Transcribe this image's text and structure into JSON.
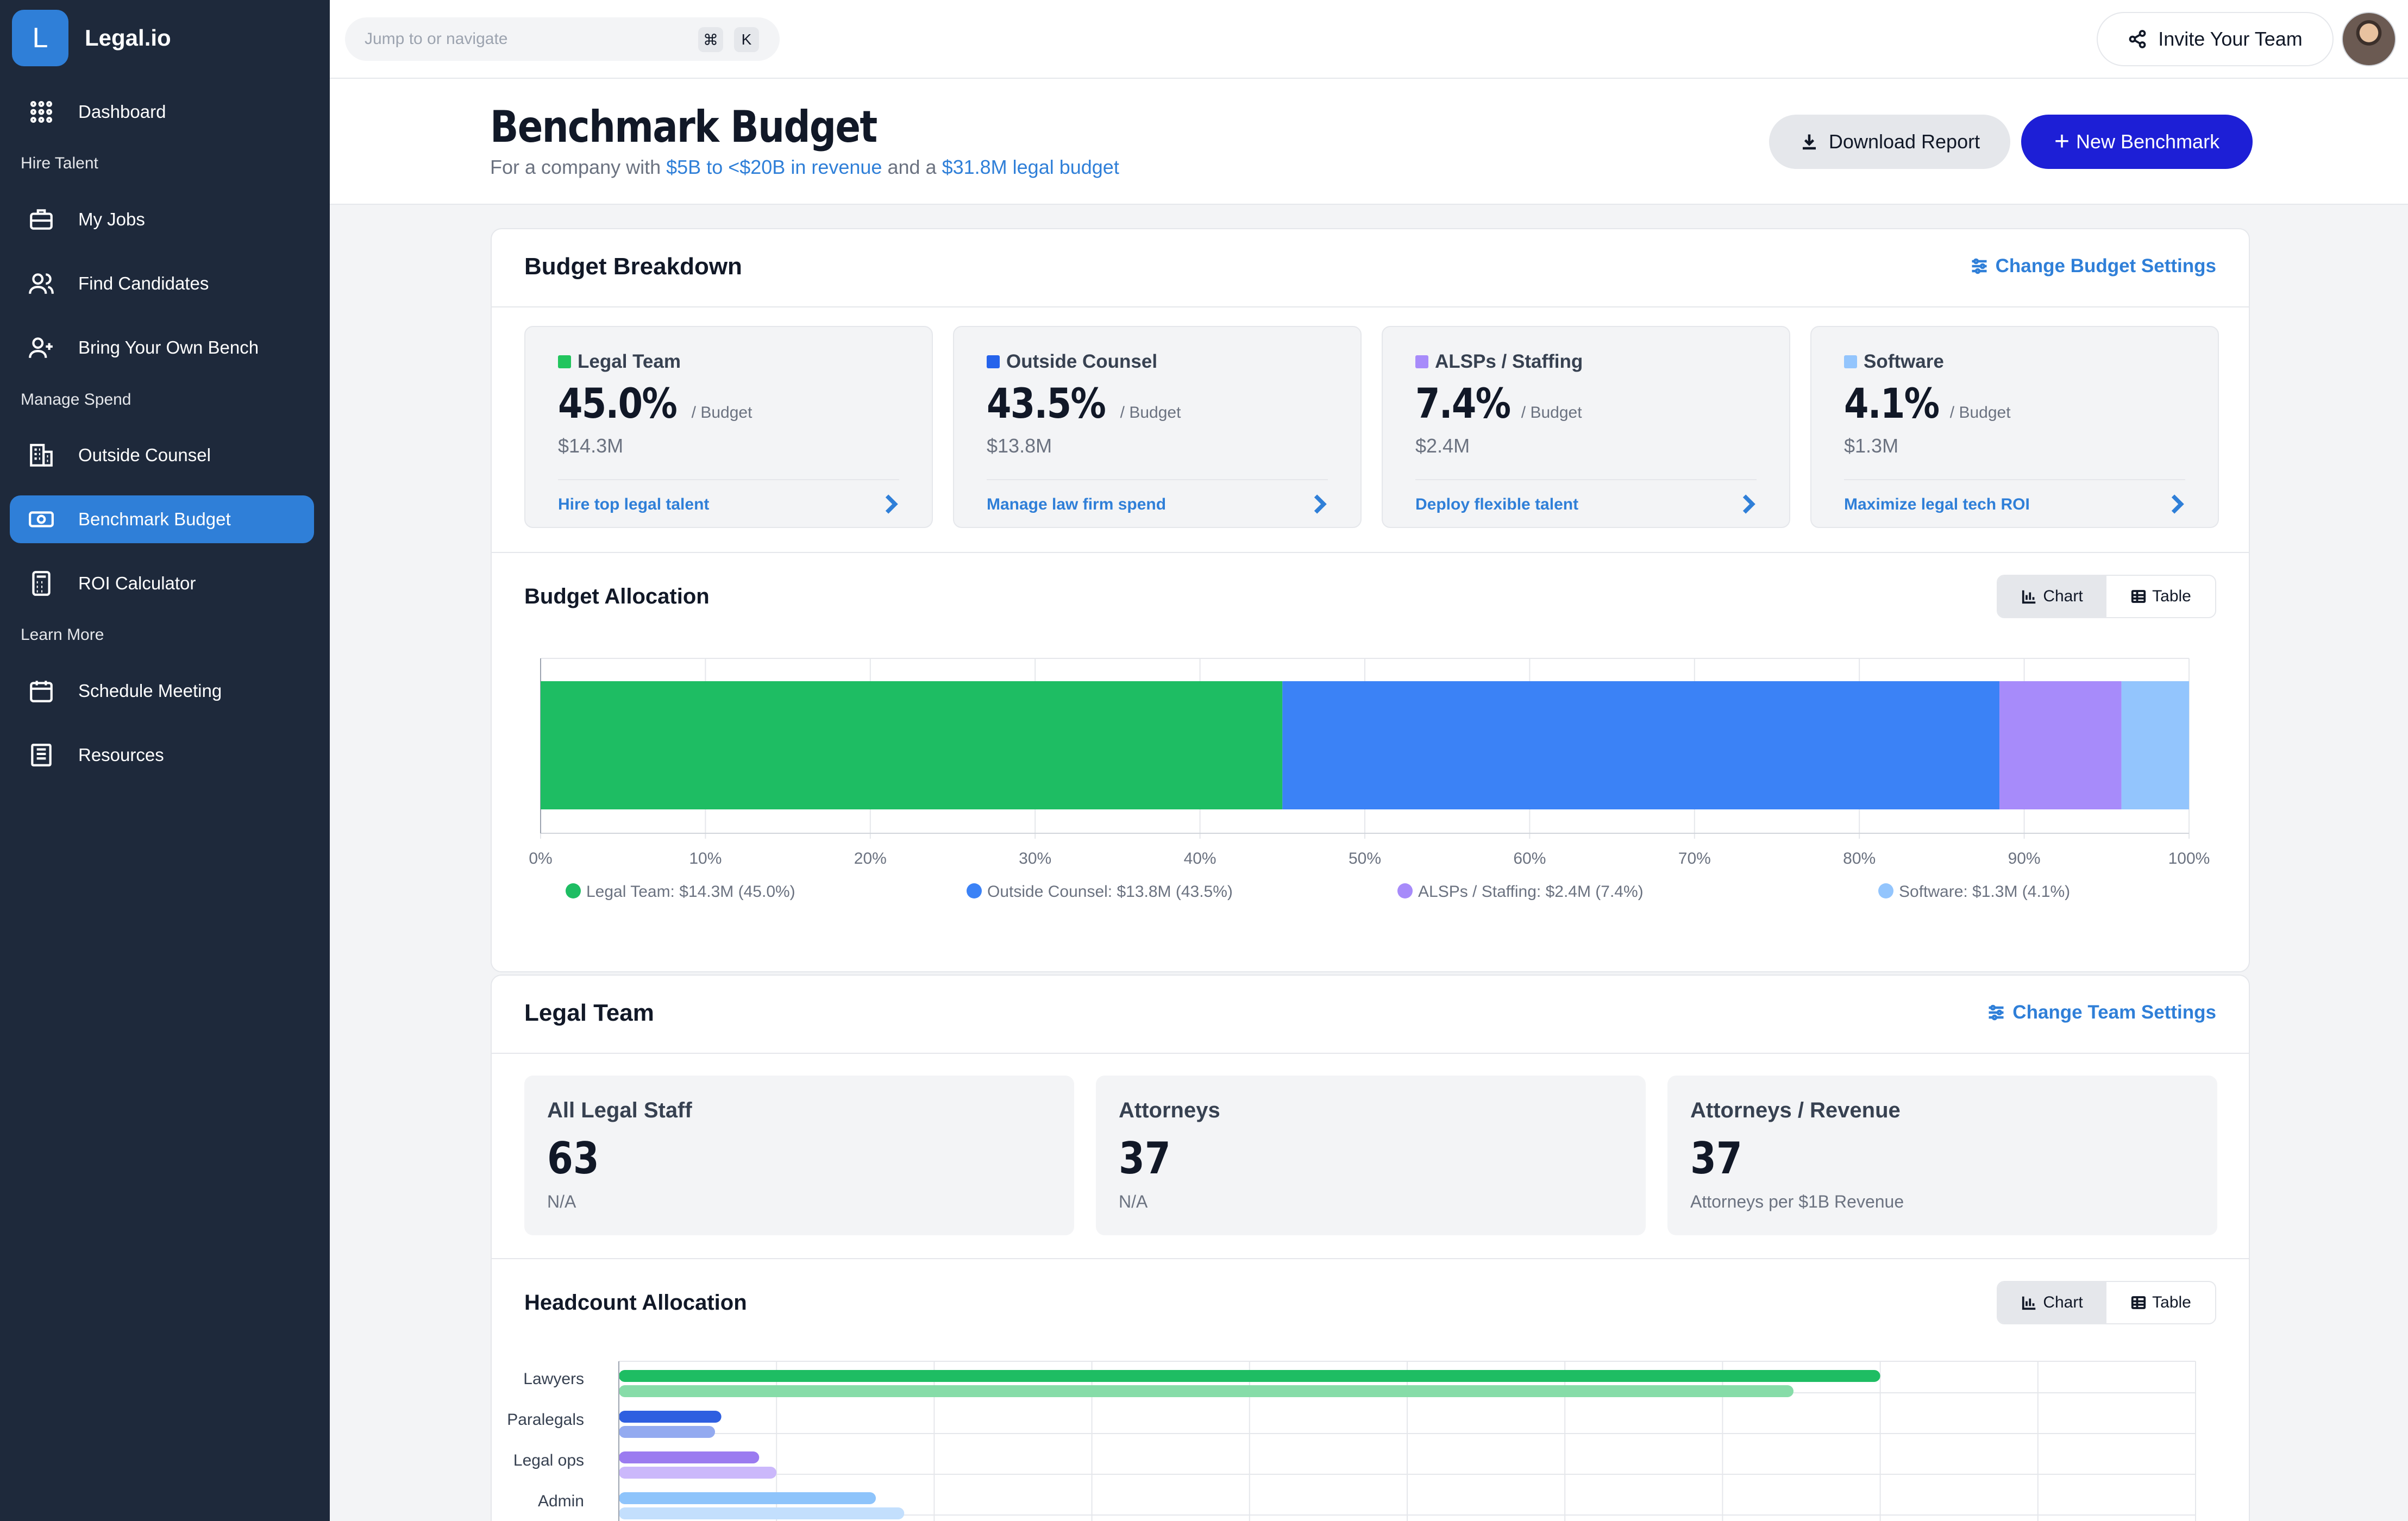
{
  "app": {
    "logo_letter": "L",
    "name": "Legal.io"
  },
  "sidebar": {
    "items": [
      {
        "label": "Dashboard",
        "icon": "grid-icon"
      },
      {
        "section": "Hire Talent"
      },
      {
        "label": "My Jobs",
        "icon": "briefcase-icon"
      },
      {
        "label": "Find Candidates",
        "icon": "users-icon"
      },
      {
        "label": "Bring Your Own Bench",
        "icon": "user-plus-icon"
      },
      {
        "section": "Manage Spend"
      },
      {
        "label": "Outside Counsel",
        "icon": "building-icon"
      },
      {
        "label": "Benchmark Budget",
        "icon": "banknote-icon",
        "active": true
      },
      {
        "label": "ROI Calculator",
        "icon": "calculator-icon"
      },
      {
        "section": "Learn More"
      },
      {
        "label": "Schedule Meeting",
        "icon": "calendar-icon"
      },
      {
        "label": "Resources",
        "icon": "book-icon"
      }
    ]
  },
  "topbar": {
    "search_placeholder": "Jump to or navigate",
    "shortcut_keys": [
      "⌘",
      "K"
    ],
    "invite_label": "Invite Your Team"
  },
  "header": {
    "title": "Benchmark Budget",
    "subtitle_prefix": "For a company with",
    "revenue_range": "$5B to <$20B in revenue",
    "subtitle_mid": "and a",
    "legal_budget": "$31.8M legal budget",
    "download_label": "Download Report",
    "new_label": "New Benchmark"
  },
  "budget_breakdown": {
    "title": "Budget Breakdown",
    "settings_link": "Change Budget Settings",
    "per_label": "/ Budget",
    "metrics": [
      {
        "label": "Legal Team",
        "percent": "45.0%",
        "amount": "$14.3M",
        "link": "Hire top legal talent",
        "color": "#22c55e"
      },
      {
        "label": "Outside Counsel",
        "percent": "43.5%",
        "amount": "$13.8M",
        "link": "Manage law firm spend",
        "color": "#2563eb"
      },
      {
        "label": "ALSPs / Staffing",
        "percent": "7.4%",
        "amount": "$2.4M",
        "link": "Deploy flexible talent",
        "color": "#a78bfa"
      },
      {
        "label": "Software",
        "percent": "4.1%",
        "amount": "$1.3M",
        "link": "Maximize legal tech ROI",
        "color": "#93c5fd"
      }
    ]
  },
  "toggle": {
    "chart_label": "Chart",
    "table_label": "Table"
  },
  "budget_allocation": {
    "title": "Budget Allocation"
  },
  "legal_team": {
    "title": "Legal Team",
    "settings_link": "Change Team Settings",
    "stats": [
      {
        "label": "All Legal Staff",
        "value": "63",
        "sub": "N/A"
      },
      {
        "label": "Attorneys",
        "value": "37",
        "sub": "N/A"
      },
      {
        "label": "Attorneys / Revenue",
        "value": "37",
        "sub": "Attorneys per $1B Revenue"
      }
    ]
  },
  "headcount_allocation": {
    "title": "Headcount Allocation"
  },
  "chart_data": [
    {
      "type": "bar",
      "orientation": "horizontal-stacked",
      "xlim": [
        0,
        100
      ],
      "xticks": [
        "0%",
        "10%",
        "20%",
        "30%",
        "40%",
        "50%",
        "60%",
        "70%",
        "80%",
        "90%",
        "100%"
      ],
      "series": [
        {
          "name": "Legal Team",
          "value": 45.0,
          "color": "#1ebd63"
        },
        {
          "name": "Outside Counsel",
          "value": 43.5,
          "color": "#3b82f6"
        },
        {
          "name": "ALSPs / Staffing",
          "value": 7.4,
          "color": "#a78bfa"
        },
        {
          "name": "Software",
          "value": 4.1,
          "color": "#93c5fd"
        }
      ],
      "legend": [
        "Legal Team: $14.3M (45.0%)",
        "Outside Counsel: $13.8M (43.5%)",
        "ALSPs / Staffing: $2.4M (7.4%)",
        "Software: $1.3M (4.1%)"
      ],
      "legend_position": "bottom",
      "grid": true
    },
    {
      "type": "bar",
      "orientation": "horizontal-grouped",
      "categories": [
        "Lawyers",
        "Paralegals",
        "Legal ops",
        "Admin"
      ],
      "xlim": [
        0,
        100
      ],
      "series": [
        {
          "values": [
            80,
            6.5,
            8.9,
            16.3
          ],
          "colors": [
            "#1ebd63",
            "#2f5fe0",
            "#9b7bf0",
            "#8ec4fb"
          ]
        },
        {
          "values": [
            74.5,
            6.1,
            10,
            18.1
          ],
          "colors": [
            "#86dca8",
            "#93aaf0",
            "#cbb8fb",
            "#c3dffd"
          ]
        }
      ],
      "grid": true
    }
  ]
}
